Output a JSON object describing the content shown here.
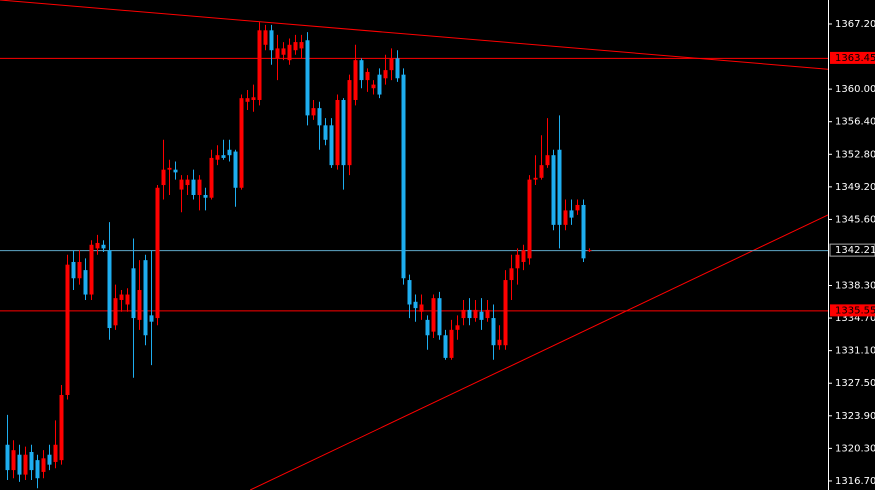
{
  "chart_data": {
    "type": "candlestick",
    "open": [
      1320.7,
      1317.9,
      1319.6,
      1317.4,
      1319.9,
      1319.0,
      1317.7,
      1319.6,
      1318.8,
      1319.0,
      1326.2,
      1340.9,
      1339.1,
      1340.0,
      1337.3,
      1342.4,
      1342.8,
      1342.2,
      1333.9,
      1336.7,
      1336.2,
      1340.2,
      1334.5,
      1341.1,
      1335.0,
      1334.7,
      1349.4,
      1351.1,
      1351.1,
      1348.9,
      1349.4,
      1350.0,
      1348.3,
      1348.3,
      1348.0,
      1352.2,
      1352.7,
      1353.3,
      1353.1,
      1349.1,
      1358.6,
      1358.8,
      1358.8,
      1364.9,
      1366.5,
      1363.4,
      1363.8,
      1363.2,
      1364.3,
      1364.5,
      1365.4,
      1357.1,
      1357.9,
      1356.0,
      1356.0,
      1351.6,
      1358.8,
      1351.6,
      1358.8,
      1363.2,
      1361.0,
      1360.1,
      1361.6,
      1361.2,
      1362.1,
      1363.4,
      1361.6,
      1338.9,
      1336.5,
      1335.4,
      1334.5,
      1333.2,
      1336.9,
      1332.8,
      1330.3,
      1333.4,
      1334.7,
      1335.6,
      1334.7,
      1335.4,
      1334.7,
      1334.7,
      1331.7,
      1331.7,
      1338.9,
      1340.2,
      1340.9,
      1341.3,
      1350.0,
      1350.2,
      1351.6,
      1352.7,
      1353.3,
      1345.0,
      1346.6,
      1346.6,
      1347.2,
      1342.21
    ],
    "high": [
      1324.0,
      1321.2,
      1320.7,
      1320.5,
      1320.7,
      1319.6,
      1320.1,
      1320.7,
      1323.4,
      1327.3,
      1341.7,
      1342.2,
      1342.2,
      1341.3,
      1343.3,
      1343.9,
      1343.3,
      1345.3,
      1338.4,
      1337.8,
      1338.0,
      1343.5,
      1341.1,
      1341.7,
      1342.2,
      1349.4,
      1354.4,
      1352.2,
      1352.0,
      1350.5,
      1350.5,
      1351.1,
      1350.5,
      1349.1,
      1353.3,
      1353.8,
      1354.4,
      1354.4,
      1353.3,
      1359.4,
      1359.9,
      1360.5,
      1367.4,
      1367.1,
      1367.1,
      1366.0,
      1365.2,
      1365.6,
      1366.0,
      1366.0,
      1366.3,
      1358.8,
      1358.6,
      1356.8,
      1356.8,
      1359.4,
      1359.0,
      1361.6,
      1364.9,
      1363.4,
      1362.3,
      1361.0,
      1362.3,
      1363.8,
      1364.5,
      1364.3,
      1362.3,
      1339.5,
      1337.3,
      1337.3,
      1335.0,
      1337.3,
      1337.6,
      1333.4,
      1334.5,
      1335.0,
      1336.7,
      1336.9,
      1336.7,
      1336.9,
      1336.7,
      1336.2,
      1333.9,
      1340.0,
      1341.7,
      1342.4,
      1342.8,
      1350.5,
      1352.7,
      1354.9,
      1356.8,
      1353.3,
      1357.1,
      1347.8,
      1347.8,
      1347.8,
      1347.8,
      1342.4
    ],
    "low": [
      1316.8,
      1317.0,
      1316.6,
      1316.8,
      1316.8,
      1315.9,
      1317.0,
      1317.9,
      1318.1,
      1318.5,
      1325.7,
      1337.8,
      1338.4,
      1336.7,
      1336.7,
      1341.7,
      1342.0,
      1332.3,
      1333.4,
      1335.4,
      1335.4,
      1328.1,
      1333.4,
      1331.7,
      1329.5,
      1333.9,
      1347.8,
      1348.3,
      1350.0,
      1346.4,
      1348.3,
      1347.8,
      1346.6,
      1346.6,
      1347.8,
      1351.6,
      1352.2,
      1352.0,
      1347.0,
      1348.9,
      1357.7,
      1357.5,
      1358.2,
      1364.3,
      1362.7,
      1361.0,
      1363.2,
      1362.7,
      1363.8,
      1363.4,
      1356.0,
      1356.6,
      1353.3,
      1353.8,
      1351.3,
      1351.1,
      1348.9,
      1350.5,
      1358.2,
      1360.1,
      1359.7,
      1359.4,
      1359.0,
      1360.5,
      1361.0,
      1360.8,
      1338.4,
      1334.7,
      1334.3,
      1334.5,
      1331.2,
      1332.5,
      1332.3,
      1330.1,
      1330.1,
      1332.3,
      1333.9,
      1333.9,
      1334.3,
      1333.4,
      1334.3,
      1330.1,
      1331.2,
      1331.2,
      1336.7,
      1338.4,
      1340.0,
      1340.6,
      1349.4,
      1350.0,
      1351.3,
      1344.4,
      1342.4,
      1344.4,
      1345.0,
      1346.1,
      1340.9,
      1342.0
    ],
    "close": [
      1317.9,
      1320.1,
      1317.4,
      1319.6,
      1317.9,
      1317.0,
      1319.2,
      1318.5,
      1320.7,
      1326.2,
      1340.6,
      1339.1,
      1340.9,
      1337.3,
      1342.8,
      1343.0,
      1342.4,
      1333.6,
      1336.9,
      1337.3,
      1337.3,
      1334.7,
      1337.8,
      1332.8,
      1334.3,
      1349.1,
      1351.1,
      1351.3,
      1350.8,
      1350.0,
      1350.0,
      1348.3,
      1350.0,
      1348.0,
      1352.4,
      1352.7,
      1352.4,
      1352.7,
      1349.1,
      1359.0,
      1359.0,
      1359.1,
      1366.5,
      1366.5,
      1364.3,
      1364.5,
      1364.5,
      1364.9,
      1365.2,
      1365.2,
      1357.1,
      1357.9,
      1356.0,
      1354.4,
      1351.6,
      1358.8,
      1351.6,
      1361.0,
      1363.2,
      1361.0,
      1361.9,
      1360.5,
      1359.4,
      1362.1,
      1363.4,
      1361.2,
      1339.1,
      1336.2,
      1335.8,
      1336.2,
      1332.8,
      1336.9,
      1332.8,
      1330.3,
      1333.4,
      1333.9,
      1335.6,
      1334.7,
      1335.6,
      1334.5,
      1335.6,
      1331.7,
      1332.3,
      1338.9,
      1340.2,
      1341.7,
      1342.2,
      1350.0,
      1350.2,
      1351.6,
      1352.7,
      1345.0,
      1345.0,
      1346.6,
      1345.8,
      1347.2,
      1341.3,
      1342.21
    ],
    "bull_color": "#ff0000",
    "bear_color": "#1eaef0",
    "xlim": [
      -1.2,
      136.8
    ],
    "ylim": [
      1315.7,
      1369.85
    ],
    "yticks": [
      {
        "value": 1367.2,
        "label": "1367.20"
      },
      {
        "value": 1360.0,
        "label": "1360.00"
      },
      {
        "value": 1356.4,
        "label": "1356.40"
      },
      {
        "value": 1352.8,
        "label": "1352.80"
      },
      {
        "value": 1349.2,
        "label": "1349.20"
      },
      {
        "value": 1345.6,
        "label": "1345.60"
      },
      {
        "value": 1338.3,
        "label": "1338.30"
      },
      {
        "value": 1334.7,
        "label": "1334.70"
      },
      {
        "value": 1331.1,
        "label": "1331.10"
      },
      {
        "value": 1327.5,
        "label": "1327.50"
      },
      {
        "value": 1323.9,
        "label": "1323.90"
      },
      {
        "value": 1320.3,
        "label": "1320.30"
      },
      {
        "value": 1316.7,
        "label": "1316.70"
      }
    ],
    "levels": [
      {
        "value": 1363.45,
        "color": "#ff0000"
      },
      {
        "value": 1335.55,
        "color": "#ff0000"
      },
      {
        "value": 1342.21,
        "color": "#5fa8c8"
      }
    ],
    "trendlines": [
      {
        "x": [
          -1.2,
          136.8
        ],
        "y": [
          1369.85,
          1362.2
        ],
        "color": "#ff0000"
      },
      {
        "x": [
          40.5,
          136.8
        ],
        "y": [
          1315.7,
          1346.1
        ],
        "color": "#ff0000"
      }
    ]
  }
}
